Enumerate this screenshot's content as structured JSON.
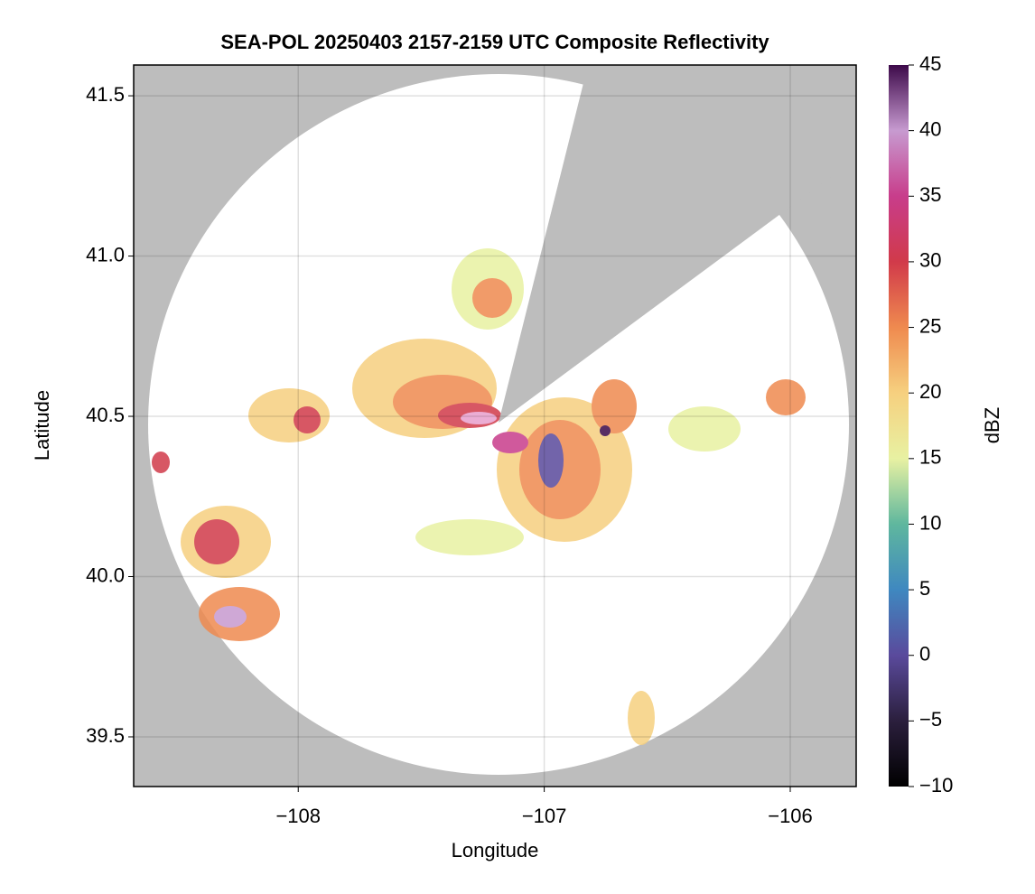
{
  "chart_data": {
    "type": "radar-map",
    "title": "SEA-POL 20250403 2157-2159 UTC Composite Reflectivity",
    "xlabel": "Longitude",
    "ylabel": "Latitude",
    "colorbar_label": "dBZ",
    "xlim": [
      -108.669,
      -105.732
    ],
    "ylim": [
      39.345,
      41.596
    ],
    "xticks": [
      {
        "value": -108,
        "label": "−108"
      },
      {
        "value": -107,
        "label": "−107"
      },
      {
        "value": -106,
        "label": "−106"
      }
    ],
    "yticks": [
      39.5,
      {
        "value": 40,
        "label": "40.0"
      },
      40.5,
      {
        "value": 41,
        "label": "41.0"
      },
      41.5
    ],
    "grid": true,
    "background": "#bdbdbd",
    "clim": [
      -10,
      45
    ],
    "cticks": [
      {
        "value": -10,
        "label": "−10"
      },
      {
        "value": -5,
        "label": "−5"
      },
      0,
      5,
      10,
      15,
      20,
      25,
      30,
      35,
      40,
      45
    ],
    "colormap": [
      "#000000",
      "#2b1f3d",
      "#5a4a9c",
      "#3f88c0",
      "#5fb79e",
      "#e8f1a2",
      "#f6d07f",
      "#ef8a4f",
      "#d13a4a",
      "#c83d8b",
      "#c79ad0",
      "#3d0a4a"
    ]
  }
}
